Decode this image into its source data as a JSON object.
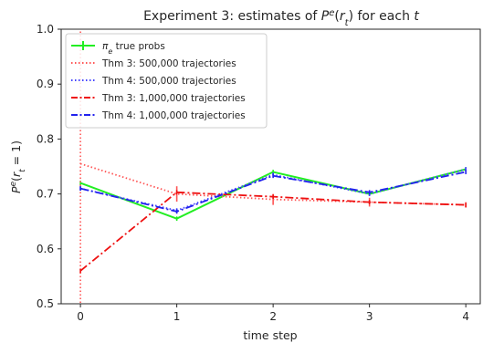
{
  "chart_data": {
    "type": "line",
    "title_prefix": "Experiment 3: estimates of ",
    "title_math": "P^e(r_t)",
    "title_suffix": " for each t",
    "xlabel": "time step",
    "ylabel": "P^e(r_t = 1)",
    "x": [
      0,
      1,
      2,
      3,
      4
    ],
    "xticks": [
      "0",
      "1",
      "2",
      "3",
      "4"
    ],
    "yticks": [
      "0.5",
      "0.6",
      "0.7",
      "0.8",
      "0.9",
      "1.0"
    ],
    "xlim": [
      -0.2,
      4.15
    ],
    "ylim": [
      0.5,
      1.0
    ],
    "grid": false,
    "legend_position": "top-left",
    "series": [
      {
        "name": "π_e true probs",
        "values": [
          0.72,
          0.655,
          0.74,
          0.7,
          0.745
        ],
        "color": "#22ee22",
        "style": "solid",
        "err": [
          0.0,
          0.0,
          0.0,
          0.0,
          0.0
        ]
      },
      {
        "name": "Thm 3: 500,000 trajectories",
        "values": [
          0.755,
          0.7,
          0.69,
          0.685,
          0.68
        ],
        "color": "#ff5555",
        "style": "dotted",
        "err": [
          0.26,
          0.014,
          0.01,
          0.008,
          0.005
        ]
      },
      {
        "name": "Thm 4: 500,000 trajectories",
        "values": [
          0.71,
          0.67,
          0.735,
          0.7,
          0.745
        ],
        "color": "#4444ff",
        "style": "dotted",
        "err": [
          0.0,
          0.0,
          0.0,
          0.0,
          0.0
        ]
      },
      {
        "name": "Thm 3: 1,000,000 trajectories",
        "values": [
          0.56,
          0.703,
          0.695,
          0.685,
          0.68
        ],
        "color": "#ee1111",
        "style": "dashdot",
        "err": [
          0.0,
          0.0,
          0.0,
          0.0,
          0.0
        ]
      },
      {
        "name": "Thm 4: 1,000,000 trajectories",
        "values": [
          0.71,
          0.668,
          0.733,
          0.703,
          0.74
        ],
        "color": "#2222ee",
        "style": "dashdot",
        "err": [
          0.0,
          0.0,
          0.0,
          0.0,
          0.0
        ]
      }
    ]
  }
}
